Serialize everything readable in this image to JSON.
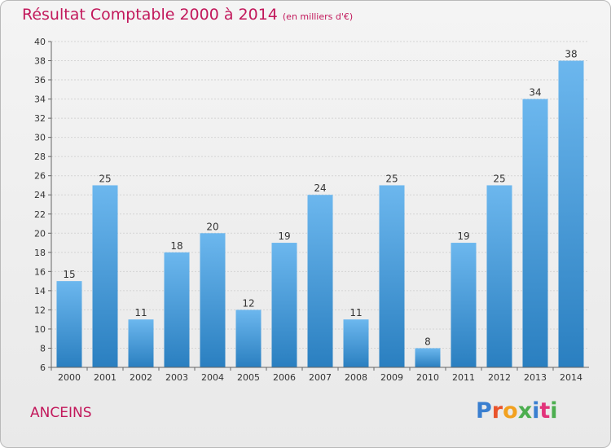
{
  "header": {
    "title": "Résultat Comptable 2000 à 2014",
    "subtitle": "(en milliers d'€)"
  },
  "footer": {
    "commune": "ANCEINS",
    "logo_letters": [
      "P",
      "r",
      "o",
      "x",
      "i",
      "t",
      "i"
    ],
    "logo_colors": [
      "#3a7fd0",
      "#e9532b",
      "#f2a11f",
      "#4cae4f",
      "#3a7fd0",
      "#e2337a",
      "#4cae4f"
    ]
  },
  "colors": {
    "title": "#c2185b",
    "bar_light": "#6cb7ee",
    "bar_dark": "#2a7fc0",
    "grid": "#d4d4d4",
    "axis": "#666666"
  },
  "chart_data": {
    "type": "bar",
    "categories": [
      "2000",
      "2001",
      "2002",
      "2003",
      "2004",
      "2005",
      "2006",
      "2007",
      "2008",
      "2009",
      "2010",
      "2011",
      "2012",
      "2013",
      "2014"
    ],
    "values": [
      15,
      25,
      11,
      18,
      20,
      12,
      19,
      24,
      11,
      25,
      8,
      19,
      25,
      34,
      38
    ],
    "ylim": [
      6,
      40
    ],
    "ytick_step": 2,
    "grid": true,
    "data_labels": true
  }
}
